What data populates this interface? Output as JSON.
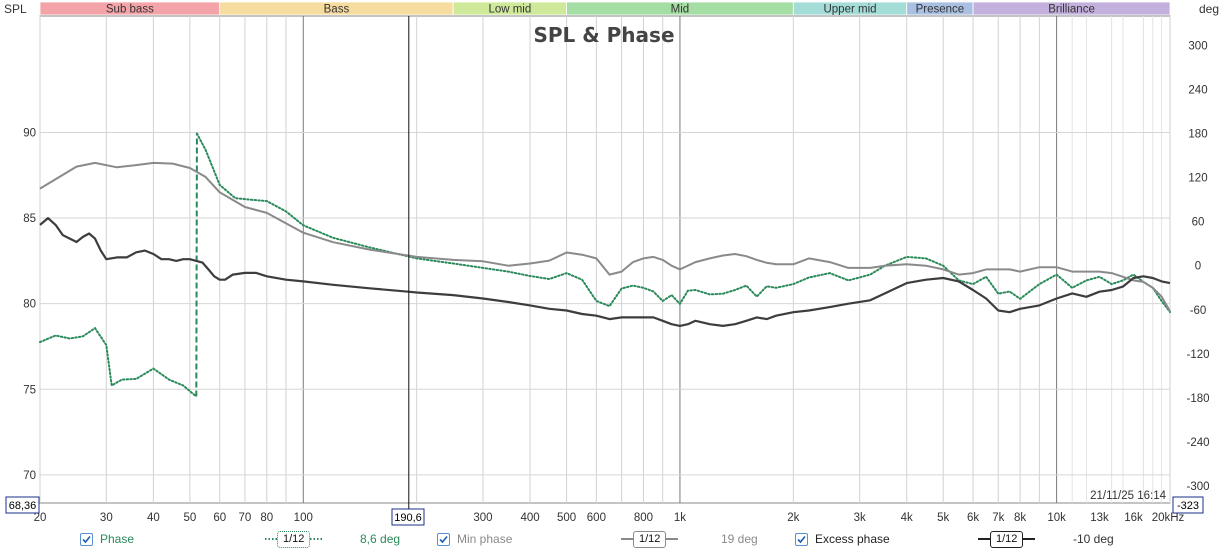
{
  "chart_data": {
    "type": "line",
    "title": "SPL & Phase",
    "ylabel_left": "SPL",
    "ylabel_right": "deg",
    "x_scale": "log",
    "xlim": [
      20,
      20000
    ],
    "ylim_left": [
      68.36,
      96.8
    ],
    "ylim_right": [
      -323,
      340
    ],
    "grid": true,
    "x_tick_labels": [
      {
        "f": 20,
        "label": "20"
      },
      {
        "f": 30,
        "label": "30"
      },
      {
        "f": 40,
        "label": "40"
      },
      {
        "f": 50,
        "label": "50"
      },
      {
        "f": 60,
        "label": "60"
      },
      {
        "f": 70,
        "label": "70"
      },
      {
        "f": 80,
        "label": "80"
      },
      {
        "f": 100,
        "label": "100"
      },
      {
        "f": 300,
        "label": "300"
      },
      {
        "f": 400,
        "label": "400"
      },
      {
        "f": 500,
        "label": "500"
      },
      {
        "f": 600,
        "label": "600"
      },
      {
        "f": 800,
        "label": "800"
      },
      {
        "f": 1000,
        "label": "1k"
      },
      {
        "f": 2000,
        "label": "2k"
      },
      {
        "f": 3000,
        "label": "3k"
      },
      {
        "f": 4000,
        "label": "4k"
      },
      {
        "f": 5000,
        "label": "5k"
      },
      {
        "f": 6000,
        "label": "6k"
      },
      {
        "f": 7000,
        "label": "7k"
      },
      {
        "f": 8000,
        "label": "8k"
      },
      {
        "f": 10000,
        "label": "10k"
      },
      {
        "f": 13000,
        "label": "13k"
      },
      {
        "f": 16000,
        "label": "16k"
      },
      {
        "f": 20000,
        "label": "20kHz"
      }
    ],
    "y_left_ticks": [
      70,
      75,
      80,
      85,
      90
    ],
    "y_right_ticks": [
      300,
      240,
      180,
      120,
      60,
      0,
      -60,
      -120,
      -180,
      -240,
      -300
    ],
    "bands": [
      {
        "name": "Sub bass",
        "from": 20,
        "to": 60,
        "color": "#f4a3a8"
      },
      {
        "name": "Bass",
        "from": 60,
        "to": 250,
        "color": "#f7dca0"
      },
      {
        "name": "Low mid",
        "from": 250,
        "to": 500,
        "color": "#cfe99a"
      },
      {
        "name": "Mid",
        "from": 500,
        "to": 2000,
        "color": "#a4dea4"
      },
      {
        "name": "Upper mid",
        "from": 2000,
        "to": 4000,
        "color": "#a4ddd8"
      },
      {
        "name": "Presence",
        "from": 4000,
        "to": 6000,
        "color": "#a9c0e3"
      },
      {
        "name": "Brilliance",
        "from": 6000,
        "to": 20000,
        "color": "#c3b0dd"
      }
    ],
    "cursor": {
      "freq": 190.6,
      "freq_label": "190,6",
      "spl_label": "68,36",
      "phase_label": "-323"
    },
    "timestamp": "21/11/25 16:14",
    "series": [
      {
        "name": "Phase",
        "axis": "right",
        "color": "#2a8a5a",
        "style": "dotted",
        "points": [
          [
            20,
            -104
          ],
          [
            22,
            -95
          ],
          [
            24,
            -99
          ],
          [
            26,
            -96
          ],
          [
            28,
            -85
          ],
          [
            30,
            -108
          ],
          [
            31,
            -163
          ],
          [
            33,
            -155
          ],
          [
            36,
            -154
          ],
          [
            40,
            -140
          ],
          [
            44,
            -155
          ],
          [
            48,
            -163
          ],
          [
            52,
            -178
          ],
          [
            52.2,
            180
          ],
          [
            55,
            158
          ],
          [
            60,
            110
          ],
          [
            66,
            92
          ],
          [
            72,
            90
          ],
          [
            80,
            88
          ],
          [
            90,
            74
          ],
          [
            100,
            55
          ],
          [
            120,
            38
          ],
          [
            150,
            25
          ],
          [
            200,
            10
          ],
          [
            250,
            3
          ],
          [
            300,
            -3
          ],
          [
            350,
            -8
          ],
          [
            400,
            -14
          ],
          [
            450,
            -18
          ],
          [
            500,
            -10
          ],
          [
            550,
            -19
          ],
          [
            600,
            -48
          ],
          [
            650,
            -55
          ],
          [
            700,
            -31
          ],
          [
            750,
            -27
          ],
          [
            800,
            -30
          ],
          [
            850,
            -35
          ],
          [
            900,
            -48
          ],
          [
            950,
            -40
          ],
          [
            1000,
            -52
          ],
          [
            1050,
            -34
          ],
          [
            1100,
            -33
          ],
          [
            1200,
            -39
          ],
          [
            1300,
            -38
          ],
          [
            1400,
            -33
          ],
          [
            1500,
            -27
          ],
          [
            1600,
            -42
          ],
          [
            1700,
            -28
          ],
          [
            1800,
            -30
          ],
          [
            2000,
            -25
          ],
          [
            2200,
            -16
          ],
          [
            2500,
            -10
          ],
          [
            2800,
            -20
          ],
          [
            3200,
            -12
          ],
          [
            3500,
            0
          ],
          [
            4000,
            12
          ],
          [
            4500,
            10
          ],
          [
            5000,
            0
          ],
          [
            5500,
            -20
          ],
          [
            6000,
            -25
          ],
          [
            6500,
            -15
          ],
          [
            7000,
            -38
          ],
          [
            7500,
            -35
          ],
          [
            8000,
            -45
          ],
          [
            9000,
            -25
          ],
          [
            10000,
            -12
          ],
          [
            11000,
            -30
          ],
          [
            12000,
            -20
          ],
          [
            13000,
            -15
          ],
          [
            14000,
            -25
          ],
          [
            15000,
            -20
          ],
          [
            16000,
            -12
          ],
          [
            17000,
            -22
          ],
          [
            18000,
            -30
          ],
          [
            19000,
            -48
          ],
          [
            20000,
            -63
          ]
        ]
      },
      {
        "name": "Min phase",
        "axis": "right",
        "color": "#8a8a8a",
        "style": "solid",
        "points": [
          [
            20,
            105
          ],
          [
            25,
            135
          ],
          [
            28,
            140
          ],
          [
            32,
            134
          ],
          [
            36,
            137
          ],
          [
            40,
            140
          ],
          [
            45,
            139
          ],
          [
            50,
            133
          ],
          [
            55,
            121
          ],
          [
            60,
            100
          ],
          [
            70,
            80
          ],
          [
            80,
            72
          ],
          [
            100,
            45
          ],
          [
            120,
            32
          ],
          [
            150,
            22
          ],
          [
            200,
            12
          ],
          [
            250,
            8
          ],
          [
            300,
            6
          ],
          [
            350,
            0
          ],
          [
            400,
            3
          ],
          [
            450,
            7
          ],
          [
            500,
            18
          ],
          [
            550,
            15
          ],
          [
            600,
            10
          ],
          [
            650,
            -12
          ],
          [
            700,
            -8
          ],
          [
            750,
            5
          ],
          [
            800,
            10
          ],
          [
            850,
            12
          ],
          [
            900,
            8
          ],
          [
            950,
            0
          ],
          [
            1000,
            -5
          ],
          [
            1100,
            5
          ],
          [
            1200,
            10
          ],
          [
            1300,
            14
          ],
          [
            1400,
            16
          ],
          [
            1500,
            13
          ],
          [
            1600,
            8
          ],
          [
            1700,
            4
          ],
          [
            1800,
            2
          ],
          [
            2000,
            2
          ],
          [
            2200,
            10
          ],
          [
            2500,
            5
          ],
          [
            2800,
            -3
          ],
          [
            3200,
            -3
          ],
          [
            3500,
            0
          ],
          [
            4000,
            2
          ],
          [
            4500,
            0
          ],
          [
            5000,
            -5
          ],
          [
            5500,
            -12
          ],
          [
            6000,
            -10
          ],
          [
            6500,
            -5
          ],
          [
            7000,
            -5
          ],
          [
            7500,
            -5
          ],
          [
            8000,
            -8
          ],
          [
            9000,
            -2
          ],
          [
            10000,
            -2
          ],
          [
            11000,
            -8
          ],
          [
            12000,
            -8
          ],
          [
            13000,
            -8
          ],
          [
            14000,
            -10
          ],
          [
            15000,
            -15
          ],
          [
            16000,
            -20
          ],
          [
            17000,
            -22
          ],
          [
            18000,
            -30
          ],
          [
            19000,
            -42
          ],
          [
            20000,
            -62
          ]
        ]
      },
      {
        "name": "SPL",
        "axis": "left",
        "color": "#3d3d3d",
        "style": "solid-thick",
        "points": [
          [
            20,
            84.6
          ],
          [
            21,
            85.0
          ],
          [
            22,
            84.6
          ],
          [
            23,
            84.0
          ],
          [
            24,
            83.8
          ],
          [
            25,
            83.6
          ],
          [
            26,
            83.9
          ],
          [
            27,
            84.1
          ],
          [
            28,
            83.8
          ],
          [
            29,
            83.1
          ],
          [
            30,
            82.6
          ],
          [
            32,
            82.7
          ],
          [
            34,
            82.7
          ],
          [
            36,
            83.0
          ],
          [
            38,
            83.1
          ],
          [
            40,
            82.9
          ],
          [
            42,
            82.6
          ],
          [
            44,
            82.6
          ],
          [
            46,
            82.5
          ],
          [
            48,
            82.6
          ],
          [
            50,
            82.6
          ],
          [
            52,
            82.5
          ],
          [
            54,
            82.4
          ],
          [
            56,
            82.0
          ],
          [
            58,
            81.6
          ],
          [
            60,
            81.4
          ],
          [
            62,
            81.4
          ],
          [
            65,
            81.7
          ],
          [
            70,
            81.8
          ],
          [
            75,
            81.8
          ],
          [
            80,
            81.6
          ],
          [
            90,
            81.4
          ],
          [
            100,
            81.3
          ],
          [
            120,
            81.1
          ],
          [
            150,
            80.9
          ],
          [
            190,
            80.7
          ],
          [
            200,
            80.65
          ],
          [
            250,
            80.5
          ],
          [
            300,
            80.3
          ],
          [
            350,
            80.1
          ],
          [
            400,
            79.9
          ],
          [
            450,
            79.7
          ],
          [
            500,
            79.6
          ],
          [
            550,
            79.4
          ],
          [
            600,
            79.3
          ],
          [
            650,
            79.1
          ],
          [
            700,
            79.2
          ],
          [
            750,
            79.2
          ],
          [
            800,
            79.2
          ],
          [
            850,
            79.2
          ],
          [
            900,
            79.0
          ],
          [
            950,
            78.8
          ],
          [
            1000,
            78.7
          ],
          [
            1050,
            78.8
          ],
          [
            1100,
            79.0
          ],
          [
            1200,
            78.8
          ],
          [
            1300,
            78.7
          ],
          [
            1400,
            78.8
          ],
          [
            1500,
            79.0
          ],
          [
            1600,
            79.2
          ],
          [
            1700,
            79.1
          ],
          [
            1800,
            79.3
          ],
          [
            2000,
            79.5
          ],
          [
            2200,
            79.6
          ],
          [
            2500,
            79.8
          ],
          [
            2800,
            80.0
          ],
          [
            3200,
            80.2
          ],
          [
            3500,
            80.6
          ],
          [
            4000,
            81.2
          ],
          [
            4500,
            81.4
          ],
          [
            5000,
            81.5
          ],
          [
            5500,
            81.3
          ],
          [
            6000,
            80.8
          ],
          [
            6500,
            80.3
          ],
          [
            7000,
            79.6
          ],
          [
            7500,
            79.5
          ],
          [
            8000,
            79.7
          ],
          [
            9000,
            79.9
          ],
          [
            10000,
            80.3
          ],
          [
            11000,
            80.6
          ],
          [
            12000,
            80.4
          ],
          [
            13000,
            80.7
          ],
          [
            14000,
            80.8
          ],
          [
            15000,
            81.0
          ],
          [
            16000,
            81.5
          ],
          [
            17000,
            81.6
          ],
          [
            18000,
            81.5
          ],
          [
            19000,
            81.3
          ],
          [
            20000,
            81.2
          ]
        ]
      }
    ]
  },
  "legend": [
    {
      "label": "Phase",
      "checked": true,
      "smoothing": "1/12",
      "value": "8,6 deg",
      "style": "dotted"
    },
    {
      "label": "Min phase",
      "checked": true,
      "smoothing": "1/12",
      "value": "19 deg",
      "style": "solid"
    },
    {
      "label": "Excess phase",
      "checked": true,
      "smoothing": "1/12",
      "value": "-10 deg",
      "style": "solid-dark"
    }
  ]
}
